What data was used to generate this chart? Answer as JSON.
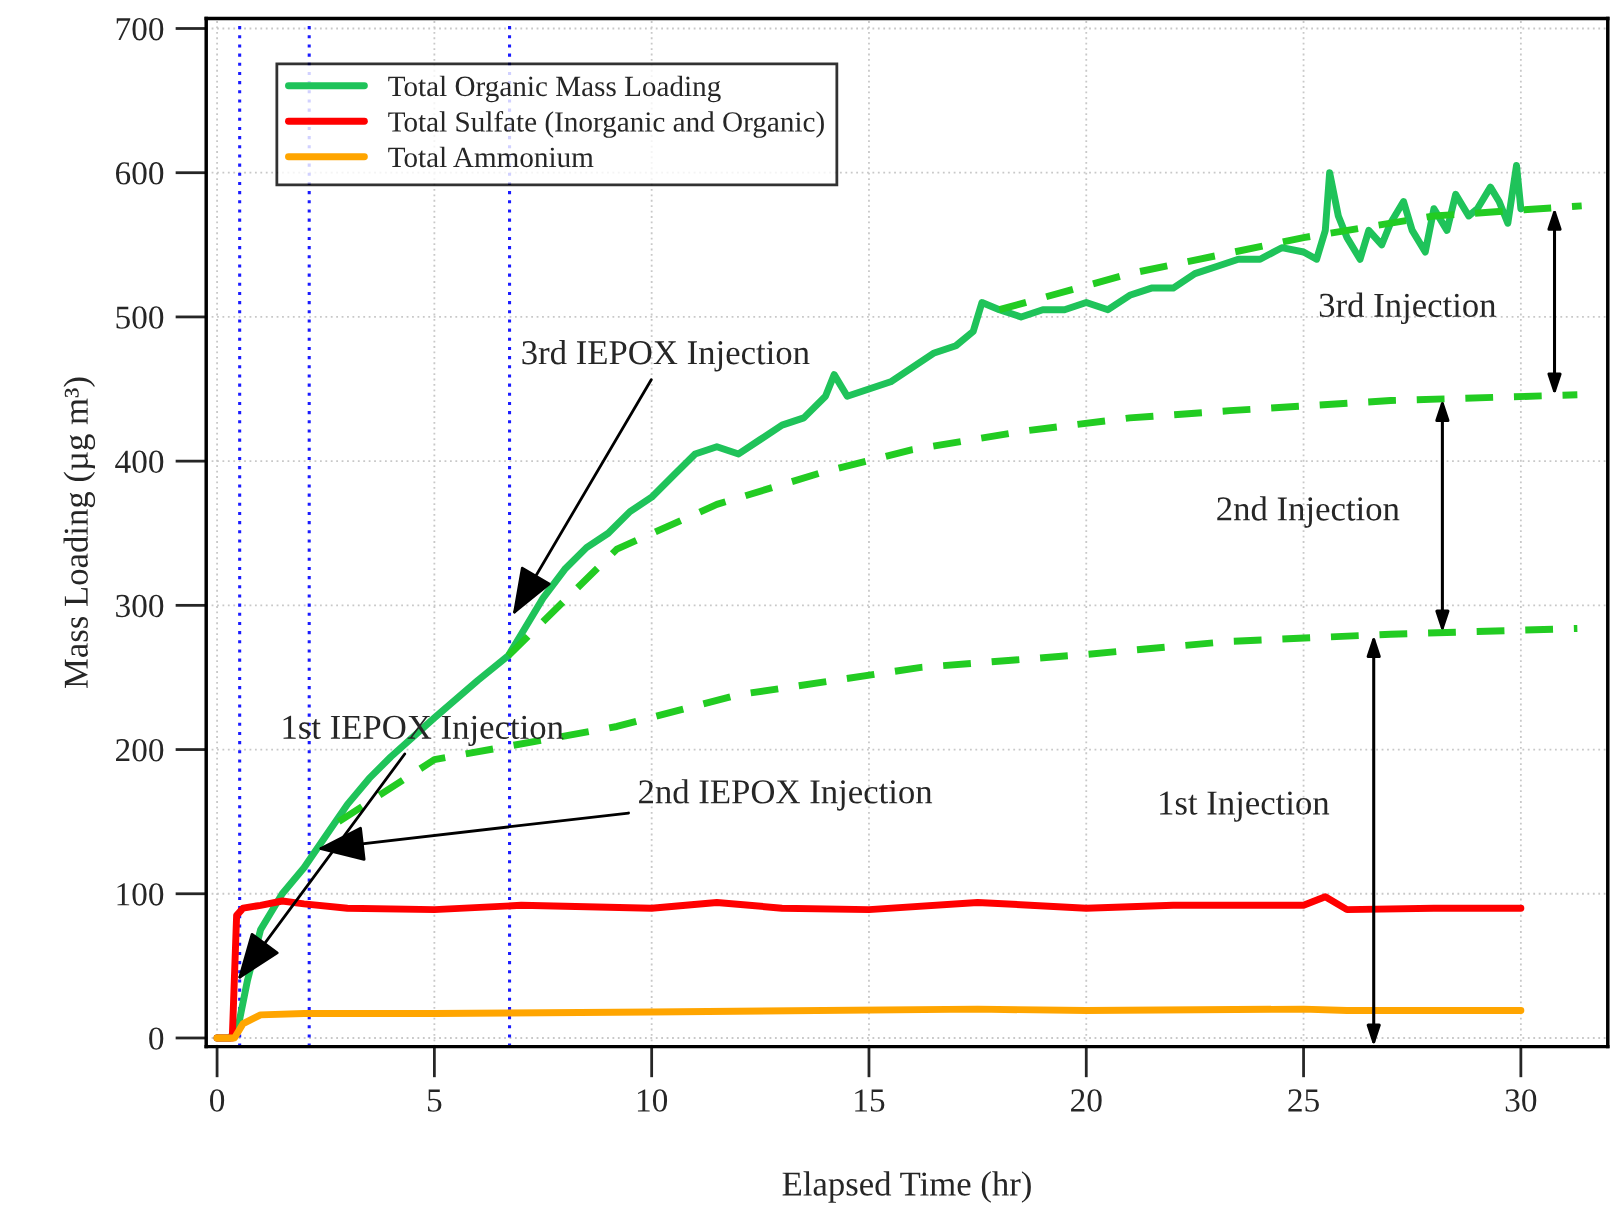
{
  "chart_data": {
    "type": "line",
    "xlabel": "Elapsed Time (hr)",
    "ylabel": "Mass Loading (µg m³)",
    "xlim": [
      -0.25,
      32
    ],
    "ylim": [
      -6,
      707
    ],
    "xticks": [
      0,
      5,
      10,
      15,
      20,
      25,
      30
    ],
    "yticks": [
      0,
      100,
      200,
      300,
      400,
      500,
      600,
      700
    ],
    "grid": true,
    "legend": "top left",
    "series": [
      {
        "name": "Total Organic Mass Loading",
        "color": "#1fc35a",
        "line_style": "solid",
        "x": [
          0,
          0.3,
          0.5,
          0.7,
          1.0,
          1.5,
          2,
          2.5,
          3,
          3.5,
          4,
          5,
          6,
          6.7,
          7,
          7.5,
          8,
          8.5,
          9,
          9.5,
          10,
          10.5,
          11,
          11.5,
          12,
          12.5,
          13,
          13.5,
          14,
          14.2,
          14.5,
          15,
          15.5,
          16,
          16.5,
          17,
          17.4,
          17.6,
          18,
          18.5,
          19,
          19.5,
          20,
          20.5,
          21,
          21.5,
          22,
          22.5,
          23,
          23.5,
          24,
          24.5,
          25,
          25.3,
          25.5,
          25.6,
          25.8,
          26,
          26.3,
          26.5,
          26.8,
          27,
          27.3,
          27.5,
          27.8,
          28,
          28.3,
          28.5,
          28.8,
          29,
          29.3,
          29.5,
          29.7,
          29.9,
          30
        ],
        "values": [
          0,
          0,
          10,
          40,
          75,
          100,
          118,
          140,
          162,
          180,
          195,
          222,
          248,
          265,
          280,
          305,
          325,
          340,
          350,
          365,
          375,
          390,
          405,
          410,
          405,
          415,
          425,
          430,
          445,
          460,
          445,
          450,
          455,
          465,
          475,
          480,
          490,
          510,
          505,
          500,
          505,
          505,
          510,
          505,
          515,
          520,
          520,
          530,
          535,
          540,
          540,
          548,
          545,
          540,
          560,
          600,
          570,
          555,
          540,
          560,
          550,
          565,
          580,
          560,
          545,
          575,
          560,
          585,
          570,
          575,
          590,
          580,
          565,
          605,
          575
        ]
      },
      {
        "name": "Total Sulfate (Inorganic and Organic)",
        "color": "#ff0000",
        "line_style": "solid",
        "x": [
          0,
          0.35,
          0.45,
          0.6,
          1,
          1.5,
          2,
          3,
          5,
          7,
          10,
          11.5,
          13,
          15,
          17.5,
          20,
          22,
          25,
          25.5,
          26,
          28,
          30
        ],
        "values": [
          0,
          0,
          85,
          90,
          92,
          95,
          93,
          90,
          89,
          92,
          90,
          94,
          90,
          89,
          94,
          90,
          92,
          92,
          98,
          89,
          90,
          90
        ]
      },
      {
        "name": "Total Ammonium",
        "color": "#ffa500",
        "line_style": "solid",
        "x": [
          0,
          0.4,
          0.6,
          1,
          2,
          5,
          10,
          17.5,
          20,
          25,
          26,
          30
        ],
        "values": [
          0,
          0,
          10,
          16,
          17,
          17,
          18,
          20,
          19,
          20,
          19,
          19
        ]
      },
      {
        "color": "#22cc22",
        "line_style": "dashed",
        "x": [
          2.8,
          5,
          9.2,
          12,
          16.2,
          20,
          23.3,
          27,
          31.3
        ],
        "values": [
          150,
          193,
          216,
          238,
          257,
          266,
          275,
          280,
          284
        ]
      },
      {
        "color": "#22cc22",
        "line_style": "dashed",
        "x": [
          6.7,
          9.2,
          11.5,
          13.9,
          16,
          18.6,
          21,
          23.3,
          27,
          31.3
        ],
        "values": [
          265,
          339,
          370,
          392,
          408,
          421,
          430,
          435,
          442,
          446
        ]
      },
      {
        "color": "#22cc22",
        "line_style": "dashed",
        "x": [
          18,
          21,
          25,
          28,
          31.4
        ],
        "values": [
          505,
          530,
          555,
          570,
          577
        ]
      }
    ],
    "ref_lines": [
      {
        "axis": "x",
        "value": 0.52,
        "color": "#1a1aff",
        "line_style": "dotted"
      },
      {
        "axis": "x",
        "value": 2.12,
        "color": "#1a1aff",
        "line_style": "dotted"
      },
      {
        "axis": "x",
        "value": 6.73,
        "color": "#1a1aff",
        "line_style": "dotted"
      }
    ],
    "annotations": [
      {
        "text": "3rd IEPOX Injection",
        "x": 6.8,
        "y": 293
      },
      {
        "text": "1st IEPOX Injection",
        "x": 0.47,
        "y": 40
      },
      {
        "text": "2nd IEPOX Injection",
        "x": 2.3,
        "y": 131
      },
      "3rd Injection",
      "2nd Injection",
      "1st Injection"
    ]
  }
}
